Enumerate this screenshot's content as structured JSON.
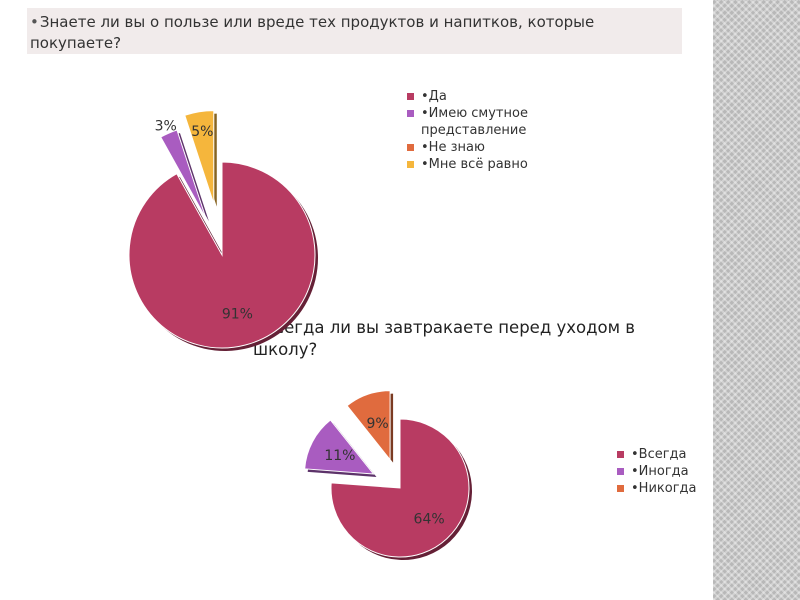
{
  "slide": {
    "question1": "Знаете ли вы о пользе или вреде тех продуктов и напитков, которые покупаете?",
    "question2": "Всегда ли вы завтракаете перед уходом в школу?",
    "bullet": "•"
  },
  "chart_data": [
    {
      "type": "pie",
      "exploded": true,
      "categories": [
        "•Да",
        "•Имею смутное представление",
        "•Не знаю",
        "•Мне всё равно"
      ],
      "values": [
        91,
        3,
        0,
        5
      ],
      "data_labels": [
        "91%",
        "3%",
        "",
        "5%"
      ],
      "colors": [
        "#b83b62",
        "#a95cc0",
        "#e06b3e",
        "#f5b63c"
      ],
      "legend": "right"
    },
    {
      "type": "pie",
      "exploded": true,
      "categories": [
        "•Всегда",
        "•Иногда",
        "•Никогда"
      ],
      "values": [
        64,
        11,
        9
      ],
      "data_labels": [
        "64%",
        "11%",
        "9%"
      ],
      "colors": [
        "#b83b62",
        "#a95cc0",
        "#e06b3e"
      ],
      "legend": "right"
    }
  ]
}
